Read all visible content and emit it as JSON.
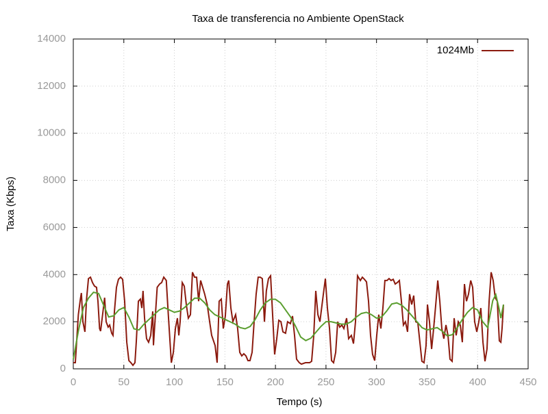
{
  "chart_data": {
    "type": "line",
    "title": "Taxa de transferencia no Ambiente OpenStack",
    "x_label": "Tempo (s)",
    "y_label": "Taxa (Kbps)",
    "xlim": [
      0,
      450
    ],
    "xticks": [
      0,
      50,
      100,
      150,
      200,
      250,
      300,
      350,
      400,
      450
    ],
    "ylim": [
      0,
      14000
    ],
    "yticks": [
      0,
      2000,
      4000,
      6000,
      8000,
      10000,
      12000,
      14000
    ],
    "grid": true,
    "legend": "top-right",
    "series": [
      {
        "name": "1024Mb",
        "color": "#8b1a0e",
        "x": [
          0,
          2,
          5,
          7,
          8,
          9.5,
          11.5,
          13,
          15,
          17,
          19,
          21,
          23,
          24.4,
          26,
          27,
          29,
          31,
          32.5,
          34.5,
          36,
          38,
          39.3,
          40.7,
          42.7,
          44.7,
          46.8,
          48.8,
          50.8,
          52.9,
          55,
          57,
          59,
          61,
          62.3,
          64.4,
          66.4,
          67.8,
          69,
          70.5,
          72.5,
          74.5,
          76.6,
          78.6,
          79.3,
          83,
          85.4,
          87.4,
          89.5,
          92,
          94,
          97,
          99,
          101,
          103,
          104.4,
          105.7,
          107.8,
          109.8,
          111.8,
          113.8,
          115.9,
          117.9,
          120,
          122,
          124,
          126,
          128,
          130,
          132.5,
          134.9,
          136.9,
          140.3,
          142.3,
          144.3,
          146.4,
          148.4,
          150.4,
          152.5,
          153.8,
          155.9,
          157.9,
          160.6,
          162.6,
          164.7,
          166.7,
          168.7,
          170.8,
          172.8,
          174.8,
          176.9,
          178.9,
          180.9,
          182.9,
          185,
          187,
          189.1,
          191,
          193.1,
          195.2,
          197.2,
          199.2,
          201.3,
          203.3,
          205.4,
          207.4,
          210,
          212,
          214.8,
          216.9,
          218.9,
          220.9,
          223.6,
          225.7,
          229.7,
          233.8,
          235.8,
          237.9,
          239.9,
          242,
          244,
          247.4,
          249.4,
          251.4,
          253.5,
          255.5,
          257.5,
          259.6,
          261.6,
          263.6,
          265.7,
          267.7,
          270.4,
          272.4,
          275.1,
          277.2,
          279.2,
          281.2,
          284,
          286,
          288,
          290.1,
          292.1,
          294.1,
          296.1,
          298.2,
          300.2,
          302.2,
          304.3,
          306.3,
          308.3,
          310.4,
          312.4,
          314.4,
          316.5,
          318.5,
          320.5,
          322.6,
          324.6,
          326.6,
          328.6,
          330.7,
          332.7,
          334.8,
          336.8,
          338.8,
          340.9,
          342.9,
          344.9,
          347,
          349,
          350.4,
          352.4,
          354.5,
          356.5,
          358.6,
          360.6,
          362.6,
          364.6,
          366.6,
          368.7,
          370.7,
          372.7,
          374.8,
          376.8,
          378.8,
          380.9,
          382.9,
          384.9,
          387,
          389,
          391,
          393.2,
          395.1,
          397.1,
          399.2,
          401.2,
          403.2,
          405.3,
          407.3,
          409.3,
          411.4,
          413.4,
          415.4,
          417.4,
          419.5,
          421.5,
          423,
          424.2,
          425.6
        ],
        "values": [
          260,
          260,
          2300,
          2960,
          3220,
          2000,
          1570,
          2900,
          3830,
          3890,
          3660,
          3510,
          3460,
          2870,
          1710,
          1600,
          2300,
          3020,
          2000,
          1770,
          1860,
          1510,
          1420,
          2440,
          3460,
          3800,
          3890,
          3800,
          2870,
          1130,
          350,
          260,
          150,
          260,
          1130,
          2870,
          2960,
          2580,
          3310,
          2150,
          1280,
          1130,
          1420,
          2440,
          1000,
          3460,
          3600,
          3660,
          3890,
          3750,
          2300,
          260,
          700,
          1710,
          2150,
          1420,
          2000,
          3660,
          3510,
          2730,
          2150,
          2300,
          4100,
          3890,
          3890,
          2870,
          3750,
          3460,
          3170,
          2730,
          2000,
          1420,
          990,
          260,
          2870,
          2960,
          1710,
          2240,
          3600,
          3750,
          2580,
          2000,
          2300,
          1710,
          700,
          550,
          640,
          550,
          350,
          350,
          700,
          2000,
          3170,
          3890,
          3890,
          3830,
          2000,
          3310,
          3830,
          3950,
          2300,
          610,
          1280,
          2060,
          2000,
          1570,
          1510,
          2000,
          1920,
          2240,
          1420,
          410,
          260,
          200,
          260,
          260,
          320,
          1420,
          3310,
          2300,
          2000,
          3170,
          3830,
          2580,
          1710,
          350,
          260,
          700,
          2000,
          1770,
          1860,
          1710,
          2150,
          1280,
          1420,
          1070,
          2000,
          3950,
          3750,
          3890,
          3800,
          3690,
          2870,
          1420,
          610,
          350,
          1420,
          2300,
          1710,
          2580,
          3750,
          3750,
          3830,
          3750,
          3800,
          3600,
          3660,
          3750,
          2870,
          1860,
          2000,
          1570,
          3170,
          2730,
          3110,
          2000,
          1950,
          1130,
          320,
          260,
          990,
          2730,
          2000,
          840,
          1710,
          2730,
          3750,
          2870,
          1710,
          1280,
          1860,
          1420,
          410,
          320,
          2150,
          1420,
          2000,
          1860,
          1130,
          3600,
          2870,
          3170,
          3750,
          3460,
          2000,
          1570,
          2000,
          2580,
          1130,
          320,
          840,
          2870,
          4100,
          3750,
          3020,
          2870,
          1190,
          1130,
          1710,
          2730
        ]
      },
      {
        "color": "#5a9e2f",
        "x": [
          0,
          5,
          10,
          15,
          20,
          25,
          30,
          35,
          40,
          45,
          50,
          55,
          60,
          65,
          70,
          75,
          80,
          85,
          90,
          95,
          100,
          105,
          110,
          115,
          120,
          125,
          130,
          135,
          140,
          145,
          150,
          155,
          160,
          165,
          170,
          175,
          180,
          185,
          190,
          195,
          200,
          205,
          210,
          215,
          220,
          225,
          230,
          235,
          240,
          245,
          250,
          255,
          260,
          265,
          270,
          275,
          280,
          285,
          290,
          295,
          300,
          305,
          310,
          315,
          320,
          325,
          330,
          335,
          340,
          345,
          350,
          355,
          360,
          365,
          370,
          375,
          380,
          385,
          390,
          395,
          400,
          405,
          410,
          415,
          418,
          421,
          423,
          425.6
        ],
        "values": [
          400,
          1600,
          2600,
          3000,
          3250,
          3200,
          2700,
          2200,
          2250,
          2500,
          2600,
          2200,
          1700,
          1650,
          1900,
          2100,
          2300,
          2500,
          2600,
          2500,
          2400,
          2450,
          2600,
          2800,
          3000,
          3000,
          2800,
          2500,
          2300,
          2200,
          2100,
          2000,
          1900,
          1750,
          1700,
          1800,
          2100,
          2500,
          2800,
          2950,
          2950,
          2800,
          2500,
          2200,
          1800,
          1350,
          1200,
          1300,
          1550,
          1800,
          2000,
          2000,
          1950,
          1900,
          1900,
          2000,
          2200,
          2350,
          2400,
          2300,
          2150,
          2200,
          2450,
          2750,
          2800,
          2700,
          2500,
          2250,
          2000,
          1750,
          1650,
          1700,
          1750,
          1600,
          1400,
          1450,
          1750,
          2100,
          2400,
          2600,
          2500,
          2000,
          1750,
          2900,
          3150,
          2600,
          2150,
          2730
        ]
      }
    ]
  }
}
